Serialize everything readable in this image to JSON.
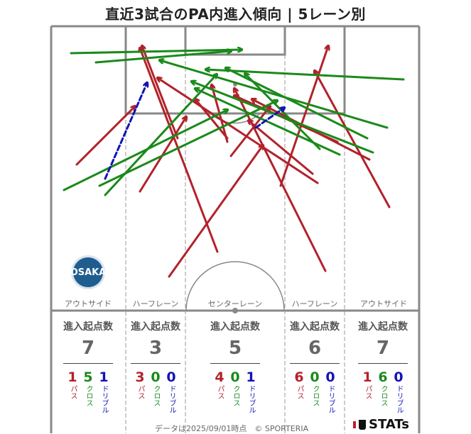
{
  "title": "直近3試合のPA内進入傾向 | 5レーン別",
  "lanes": [
    {
      "name": "アウトサイド",
      "heading": "進入起点数",
      "total": "7",
      "pass": "1",
      "cross": "5",
      "dribble": "1"
    },
    {
      "name": "ハーフレーン",
      "heading": "進入起点数",
      "total": "3",
      "pass": "3",
      "cross": "0",
      "dribble": "0"
    },
    {
      "name": "センターレーン",
      "heading": "進入起点数",
      "total": "5",
      "pass": "4",
      "cross": "0",
      "dribble": "1"
    },
    {
      "name": "ハーフレーン",
      "heading": "進入起点数",
      "total": "6",
      "pass": "6",
      "cross": "0",
      "dribble": "0"
    },
    {
      "name": "アウトサイド",
      "heading": "進入起点数",
      "total": "7",
      "pass": "1",
      "cross": "6",
      "dribble": "0"
    }
  ],
  "labels": {
    "pass": "パス",
    "cross": "クロス",
    "dribble": "ドリブル"
  },
  "logo_text": "OSAKA",
  "footer": "データは2025/09/01時点　© SPORTERIA",
  "brand": "STATs",
  "colors": {
    "pass": "#b2222a",
    "cross": "#1a8a1a",
    "dribble": "#1414b4",
    "lines": "#888888"
  },
  "arrows": [
    {
      "type": "pass",
      "from": [
        306,
        355
      ],
      "to": [
        197,
        68
      ]
    },
    {
      "type": "pass",
      "from": [
        238,
        390
      ],
      "to": [
        370,
        205
      ]
    },
    {
      "type": "pass",
      "from": [
        108,
        232
      ],
      "to": [
        190,
        150
      ]
    },
    {
      "type": "pass",
      "from": [
        197,
        270
      ],
      "to": [
        262,
        165
      ]
    },
    {
      "type": "pass",
      "from": [
        320,
        195
      ],
      "to": [
        275,
        140
      ]
    },
    {
      "type": "pass",
      "from": [
        447,
        258
      ],
      "to": [
        222,
        110
      ]
    },
    {
      "type": "pass",
      "from": [
        458,
        382
      ],
      "to": [
        330,
        125
      ]
    },
    {
      "type": "pass",
      "from": [
        395,
        262
      ],
      "to": [
        462,
        65
      ]
    },
    {
      "type": "pass",
      "from": [
        548,
        292
      ],
      "to": [
        443,
        100
      ]
    },
    {
      "type": "pass",
      "from": [
        250,
        195
      ],
      "to": [
        200,
        65
      ]
    },
    {
      "type": "pass",
      "from": [
        475,
        200
      ],
      "to": [
        330,
        135
      ]
    },
    {
      "type": "pass",
      "from": [
        520,
        225
      ],
      "to": [
        355,
        140
      ]
    },
    {
      "type": "pass",
      "from": [
        320,
        200
      ],
      "to": [
        298,
        120
      ]
    },
    {
      "type": "pass",
      "from": [
        440,
        245
      ],
      "to": [
        350,
        170
      ]
    },
    {
      "type": "pass",
      "from": [
        325,
        220
      ],
      "to": [
        380,
        150
      ]
    },
    {
      "type": "cross",
      "from": [
        100,
        75
      ],
      "to": [
        340,
        70
      ]
    },
    {
      "type": "cross",
      "from": [
        135,
        88
      ],
      "to": [
        325,
        72
      ]
    },
    {
      "type": "cross",
      "from": [
        90,
        268
      ],
      "to": [
        320,
        155
      ]
    },
    {
      "type": "cross",
      "from": [
        140,
        262
      ],
      "to": [
        390,
        142
      ]
    },
    {
      "type": "cross",
      "from": [
        148,
        275
      ],
      "to": [
        305,
        105
      ]
    },
    {
      "type": "cross",
      "from": [
        545,
        180
      ],
      "to": [
        225,
        85
      ]
    },
    {
      "type": "cross",
      "from": [
        568,
        112
      ],
      "to": [
        290,
        98
      ]
    },
    {
      "type": "cross",
      "from": [
        517,
        195
      ],
      "to": [
        318,
        96
      ]
    },
    {
      "type": "cross",
      "from": [
        525,
        215
      ],
      "to": [
        270,
        115
      ]
    },
    {
      "type": "cross",
      "from": [
        478,
        218
      ],
      "to": [
        275,
        125
      ]
    },
    {
      "type": "cross",
      "from": [
        450,
        210
      ],
      "to": [
        345,
        104
      ]
    },
    {
      "type": "dribble",
      "from": [
        148,
        252
      ],
      "to": [
        207,
        117
      ]
    },
    {
      "type": "dribble",
      "from": [
        360,
        180
      ],
      "to": [
        400,
        152
      ]
    }
  ]
}
